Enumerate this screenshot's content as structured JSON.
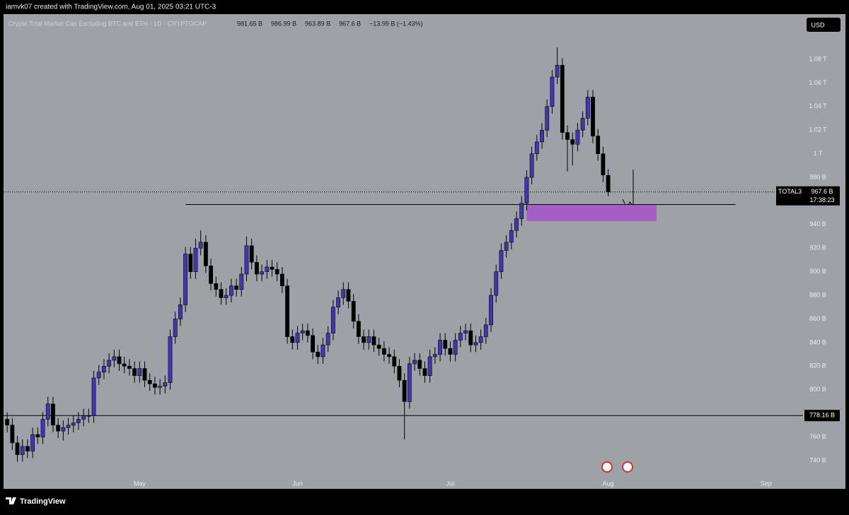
{
  "chart_data": {
    "type": "candlestick",
    "credit": "iamvk07 created with TradingView.com, Aug 01, 2025 03:21 UTC-3",
    "title": "Crypto Total Market Cap Excluding BTC and ETH · 1D · CRYPTOCAP",
    "legend_values": [
      "981.65 B",
      "986.99 B",
      "963.89 B",
      "967.6 B",
      "−13.99 B (−1.43%)"
    ],
    "currency": "USD",
    "symbol": "TOTAL3",
    "price_label": "967.6 B",
    "countdown": "17:38:23",
    "brand": "TradingView",
    "up_color": "#4536b0",
    "down_color": "#000000",
    "background": "#9fa1a9",
    "open": [
      775,
      770,
      755,
      745,
      752,
      748,
      762,
      760,
      775,
      788,
      770,
      765,
      768,
      770,
      772,
      775,
      778,
      778,
      810,
      815,
      820,
      825,
      828,
      822,
      820,
      818,
      812,
      818,
      808,
      805,
      802,
      803,
      806,
      845,
      860,
      872,
      915,
      900,
      920,
      925,
      905,
      890,
      885,
      878,
      880,
      888,
      885,
      898,
      922,
      908,
      898,
      900,
      904,
      902,
      898,
      888,
      845,
      840,
      848,
      850,
      846,
      832,
      828,
      838,
      848,
      870,
      878,
      885,
      875,
      858,
      845,
      840,
      845,
      838,
      835,
      830,
      828,
      820,
      808,
      790,
      822,
      825,
      818,
      812,
      828,
      830,
      842,
      835,
      830,
      842,
      848,
      850,
      838,
      840,
      845,
      855,
      880,
      900,
      918,
      925,
      935,
      945,
      958,
      980,
      1000,
      1010,
      1020,
      1040,
      1065,
      1075,
      1018,
      1012,
      1008,
      1020,
      1030,
      1048,
      1015,
      1000,
      981.65
    ],
    "high": [
      781,
      776,
      761,
      758,
      758,
      768,
      768,
      781,
      794,
      794,
      776,
      774,
      776,
      778,
      781,
      784,
      784,
      816,
      821,
      826,
      831,
      834,
      834,
      828,
      826,
      824,
      824,
      824,
      814,
      811,
      809,
      812,
      851,
      866,
      878,
      921,
      921,
      928,
      935,
      931,
      911,
      896,
      891,
      886,
      894,
      894,
      904,
      930,
      928,
      914,
      906,
      910,
      910,
      908,
      904,
      894,
      851,
      854,
      856,
      856,
      852,
      838,
      844,
      854,
      876,
      884,
      891,
      891,
      881,
      864,
      851,
      851,
      851,
      844,
      841,
      836,
      834,
      826,
      814,
      828,
      831,
      831,
      824,
      834,
      836,
      848,
      848,
      841,
      848,
      854,
      856,
      856,
      846,
      851,
      861,
      886,
      906,
      924,
      931,
      941,
      951,
      964,
      986,
      1006,
      1016,
      1026,
      1046,
      1071,
      1090,
      1081,
      1024,
      1018,
      1026,
      1036,
      1054,
      1054,
      1021,
      1006,
      986.99
    ],
    "low": [
      764,
      749,
      739,
      739,
      742,
      742,
      754,
      754,
      769,
      764,
      759,
      757,
      762,
      764,
      766,
      769,
      772,
      772,
      804,
      809,
      814,
      819,
      816,
      814,
      812,
      806,
      806,
      802,
      799,
      796,
      796,
      797,
      800,
      839,
      854,
      866,
      894,
      894,
      914,
      899,
      884,
      879,
      872,
      872,
      874,
      879,
      879,
      892,
      902,
      892,
      892,
      894,
      896,
      892,
      882,
      839,
      834,
      834,
      842,
      840,
      826,
      822,
      822,
      832,
      842,
      864,
      872,
      869,
      852,
      839,
      834,
      834,
      832,
      829,
      824,
      822,
      814,
      802,
      758,
      784,
      816,
      812,
      806,
      806,
      822,
      824,
      829,
      824,
      824,
      836,
      842,
      832,
      832,
      834,
      839,
      849,
      874,
      894,
      912,
      919,
      929,
      939,
      952,
      974,
      994,
      1004,
      1014,
      1034,
      1059,
      1012,
      985,
      990,
      1002,
      1014,
      1024,
      1009,
      994,
      976,
      963.89
    ],
    "close": [
      770,
      755,
      745,
      752,
      748,
      762,
      760,
      775,
      788,
      770,
      765,
      768,
      770,
      772,
      775,
      778,
      778,
      810,
      815,
      820,
      825,
      828,
      822,
      820,
      818,
      812,
      818,
      808,
      805,
      802,
      803,
      806,
      845,
      860,
      872,
      915,
      900,
      920,
      925,
      905,
      890,
      885,
      878,
      880,
      888,
      885,
      898,
      922,
      908,
      898,
      900,
      904,
      902,
      898,
      888,
      845,
      840,
      848,
      850,
      846,
      832,
      828,
      838,
      848,
      870,
      878,
      885,
      875,
      858,
      845,
      840,
      845,
      838,
      835,
      830,
      828,
      820,
      808,
      790,
      822,
      825,
      818,
      812,
      828,
      830,
      842,
      835,
      830,
      842,
      848,
      850,
      838,
      840,
      845,
      855,
      880,
      900,
      918,
      925,
      935,
      945,
      958,
      980,
      1000,
      1010,
      1020,
      1040,
      1065,
      1075,
      1018,
      1012,
      1008,
      1020,
      1030,
      1048,
      1015,
      1000,
      982,
      967.6
    ],
    "ylim": [
      723.2,
      1118.3
    ],
    "yticks": [
      {
        "value": 740,
        "label": "740 B"
      },
      {
        "value": 760,
        "label": "760 B"
      },
      {
        "value": 780,
        "label": "780 B"
      },
      {
        "value": 800,
        "label": "800 B"
      },
      {
        "value": 820,
        "label": "820 B"
      },
      {
        "value": 840,
        "label": "840 B"
      },
      {
        "value": 860,
        "label": "860 B"
      },
      {
        "value": 880,
        "label": "880 B"
      },
      {
        "value": 900,
        "label": "900 B"
      },
      {
        "value": 920,
        "label": "920 B"
      },
      {
        "value": 940,
        "label": "940 B"
      },
      {
        "value": 960,
        "label": "960 B"
      },
      {
        "value": 980,
        "label": "980 B"
      },
      {
        "value": 1000,
        "label": "1 T"
      },
      {
        "value": 1020,
        "label": "1.02 T"
      },
      {
        "value": 1040,
        "label": "1.04 T"
      },
      {
        "value": 1060,
        "label": "1.06 T"
      },
      {
        "value": 1080,
        "label": "1.08 T"
      }
    ],
    "xlim": [
      -0.3,
      150.7
    ],
    "xticks": [
      {
        "value": 26,
        "label": "May"
      },
      {
        "value": 57,
        "label": "Jun"
      },
      {
        "value": 87,
        "label": "Jul"
      },
      {
        "value": 118,
        "label": "Aug"
      },
      {
        "value": 149,
        "label": "Sep"
      }
    ],
    "support": {
      "value": 778.16,
      "label": "778.16 B"
    },
    "trend_line": {
      "value": 957,
      "from": 35,
      "to": 143
    },
    "zone": {
      "low": 943,
      "high": 956.5,
      "from": 102,
      "to": 127.5,
      "color": "#a45ec4"
    }
  }
}
